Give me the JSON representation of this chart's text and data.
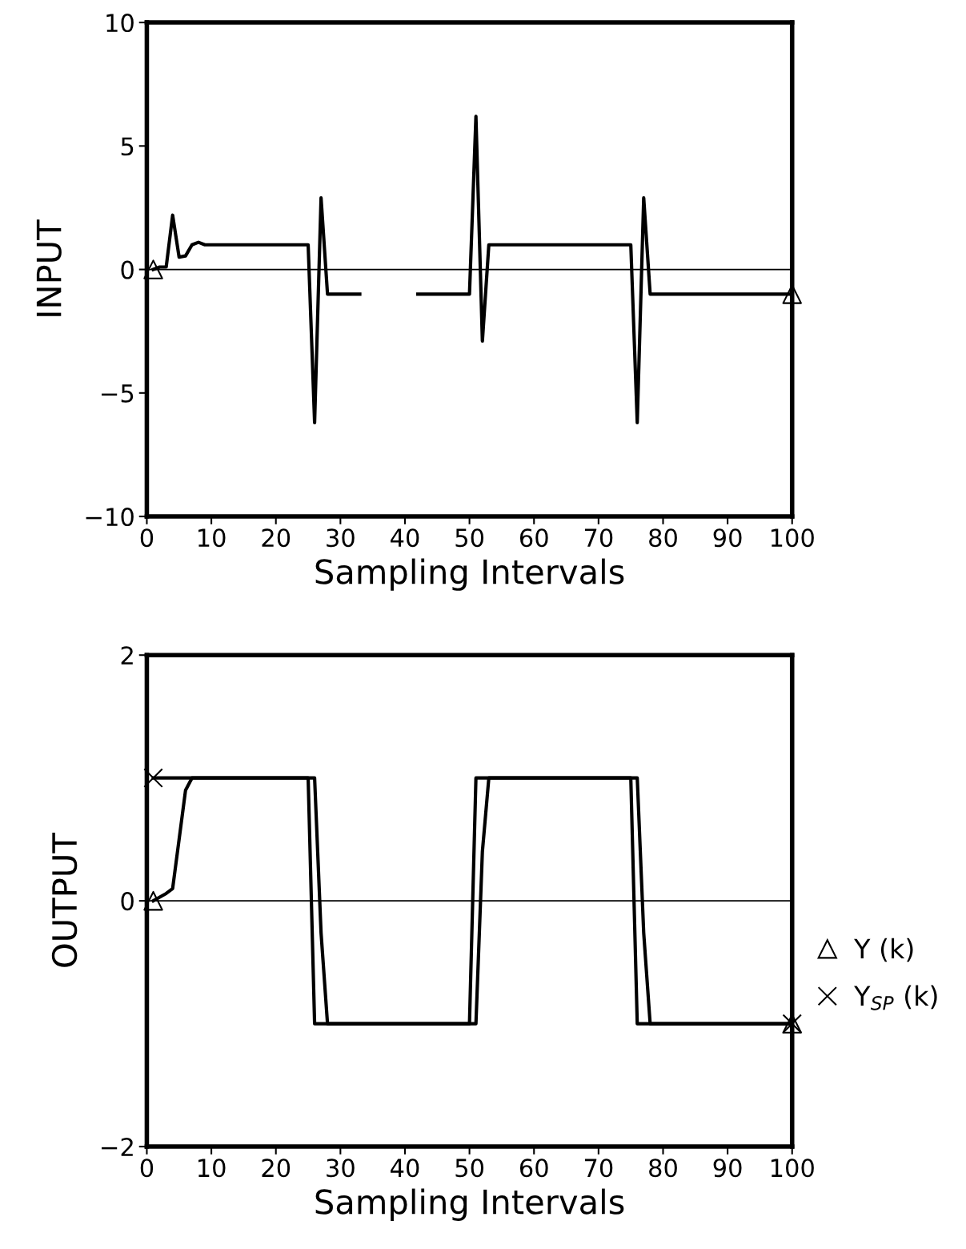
{
  "chart_data": [
    {
      "type": "line",
      "ylabel": "INPUT",
      "xlabel": "Sampling Intervals",
      "xlim": [
        0,
        100
      ],
      "xticks": [
        0,
        10,
        20,
        30,
        40,
        50,
        60,
        70,
        80,
        90,
        100
      ],
      "ylim": [
        -10,
        10
      ],
      "yticks": [
        -10,
        -5,
        0,
        5,
        10
      ],
      "grid": false,
      "legend": false,
      "line_style": "solid",
      "ref_lines": [
        {
          "axis": "y",
          "value": 0,
          "color": "#000000"
        }
      ],
      "series": [
        {
          "color": "#000000",
          "x": [
            1,
            2,
            3,
            4,
            5,
            6,
            7,
            8,
            9,
            25,
            26,
            27,
            28,
            33,
            38,
            42,
            50,
            51,
            52,
            53,
            75,
            76,
            77,
            78,
            100
          ],
          "values": [
            0,
            0.1,
            0.1,
            2.2,
            0.5,
            0.55,
            1.0,
            1.1,
            1.0,
            1.0,
            -6.2,
            2.9,
            -1,
            -1,
            null,
            -1,
            -1,
            6.2,
            -2.9,
            1.0,
            1.0,
            -6.2,
            2.9,
            -1,
            -1
          ]
        },
        {
          "type": "scatter",
          "marker": "triangle",
          "color": "#000000",
          "x": [
            1,
            100
          ],
          "values": [
            0,
            -1
          ]
        }
      ]
    },
    {
      "type": "line",
      "ylabel": "OUTPUT",
      "xlabel": "Sampling Intervals",
      "xlim": [
        0,
        100
      ],
      "xticks": [
        0,
        10,
        20,
        30,
        40,
        50,
        60,
        70,
        80,
        90,
        100
      ],
      "ylim": [
        -2,
        2
      ],
      "yticks": [
        -2,
        0,
        2
      ],
      "grid": false,
      "legend": "right",
      "line_style": "solid",
      "ref_lines": [
        {
          "axis": "y",
          "value": 0,
          "color": "#000000"
        }
      ],
      "series": [
        {
          "color": "#000000",
          "x": [
            1,
            2,
            3,
            4,
            5,
            6,
            7,
            26,
            27,
            28,
            51,
            52,
            53,
            76,
            77,
            78,
            100
          ],
          "values": [
            0,
            0.03,
            0.06,
            0.1,
            0.5,
            0.9,
            1,
            1,
            -0.26,
            -1,
            -1,
            0.4,
            1,
            1,
            -0.26,
            -1,
            -1
          ]
        },
        {
          "color": "#000000",
          "x": [
            1,
            25,
            26,
            50,
            51,
            75,
            76,
            100
          ],
          "values": [
            1,
            1,
            -1,
            -1,
            1,
            1,
            -1,
            -1
          ]
        },
        {
          "type": "scatter",
          "name": "Y (k)",
          "marker": "triangle",
          "color": "#000000",
          "x": [
            1,
            100
          ],
          "values": [
            0,
            -1
          ]
        },
        {
          "type": "scatter",
          "name": "Y$_{SP}$ (k)",
          "marker": "cross",
          "color": "#000000",
          "x": [
            1,
            100
          ],
          "values": [
            1,
            -1
          ]
        }
      ]
    }
  ]
}
